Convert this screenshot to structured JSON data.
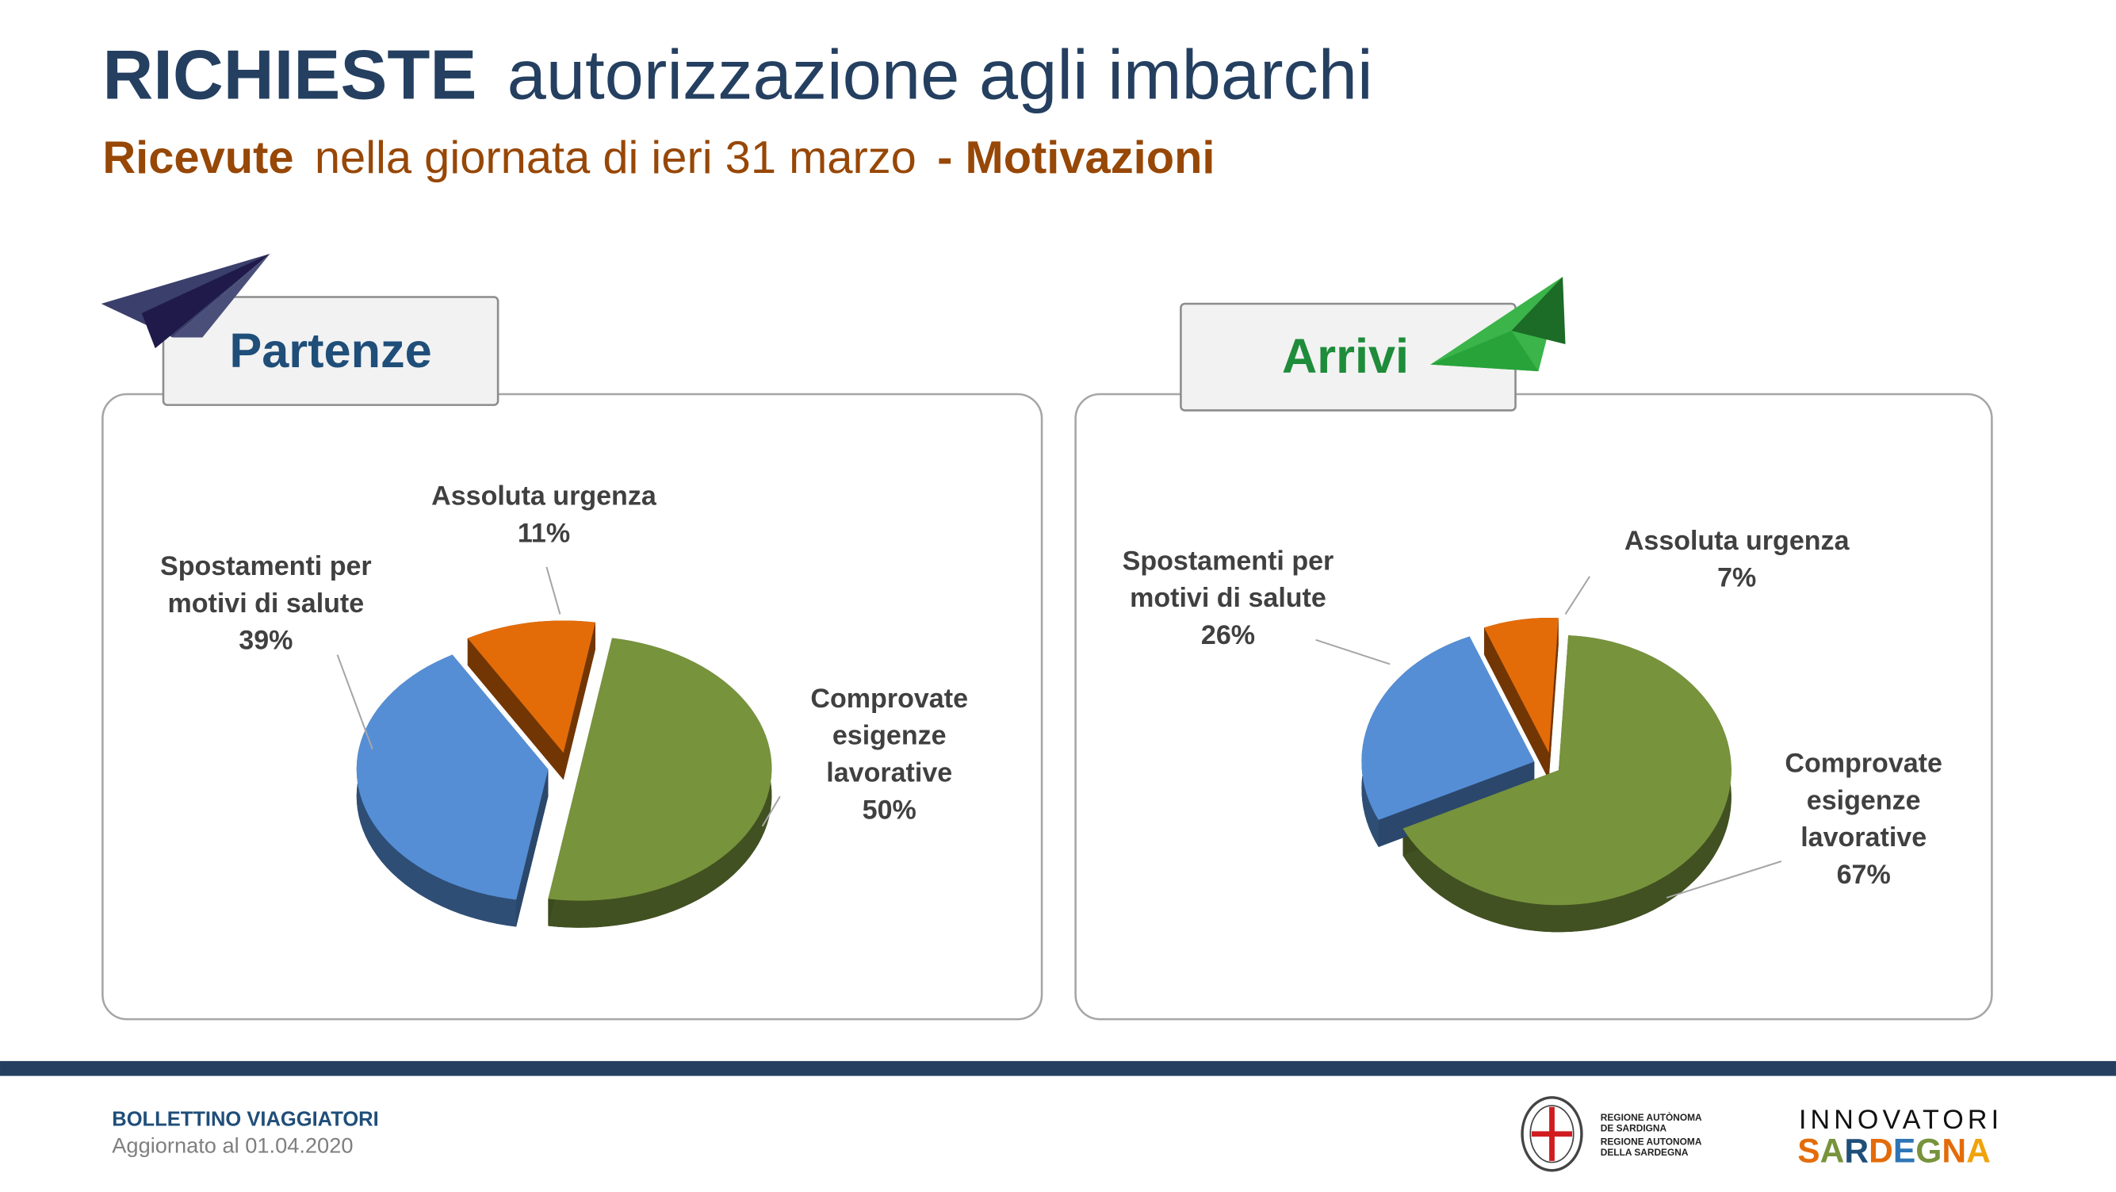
{
  "header": {
    "title_bold": "RICHIESTE",
    "title_rest": "autorizzazione agli imbarchi",
    "subtitle_bold1": "Ricevute",
    "subtitle_mid": "nella giornata di ieri 31 marzo",
    "subtitle_bold2": "- Motivazioni"
  },
  "colors": {
    "title": "#243f60",
    "subtitle": "#974706",
    "blue": "#558ed5",
    "orange": "#e36c09",
    "green": "#77933c",
    "footer_bar": "#243f60"
  },
  "chart_data": [
    {
      "type": "pie",
      "title": "Partenze",
      "icon": "paper-plane-navy-icon",
      "slices": [
        {
          "label": [
            "Assoluta urgenza"
          ],
          "value": 11,
          "pct": "11%",
          "color": "#e36c09"
        },
        {
          "label": [
            "Comprovate",
            "esigenze",
            "lavorative"
          ],
          "value": 50,
          "pct": "50%",
          "color": "#77933c"
        },
        {
          "label": [
            "Spostamenti per",
            "motivi di salute"
          ],
          "value": 39,
          "pct": "39%",
          "color": "#558ed5"
        }
      ]
    },
    {
      "type": "pie",
      "title": "Arrivi",
      "icon": "paper-plane-green-icon",
      "slices": [
        {
          "label": [
            "Assoluta urgenza"
          ],
          "value": 7,
          "pct": "7%",
          "color": "#e36c09"
        },
        {
          "label": [
            "Comprovate",
            "esigenze",
            "lavorative"
          ],
          "value": 67,
          "pct": "67%",
          "color": "#77933c"
        },
        {
          "label": [
            "Spostamenti per",
            "motivi di salute"
          ],
          "value": 26,
          "pct": "26%",
          "color": "#558ed5"
        }
      ]
    }
  ],
  "footer": {
    "bulletin": "BOLLETTINO VIAGGIATORI",
    "updated": "Aggiornato al 01.04.2020",
    "region_logo": [
      "REGIONE AUTÒNOMA",
      "DE SARDIGNA",
      "REGIONE AUTONOMA",
      "DELLA SARDEGNA"
    ],
    "innovatori": "INNOVATORI",
    "sardegna": "SARDEGNA"
  }
}
